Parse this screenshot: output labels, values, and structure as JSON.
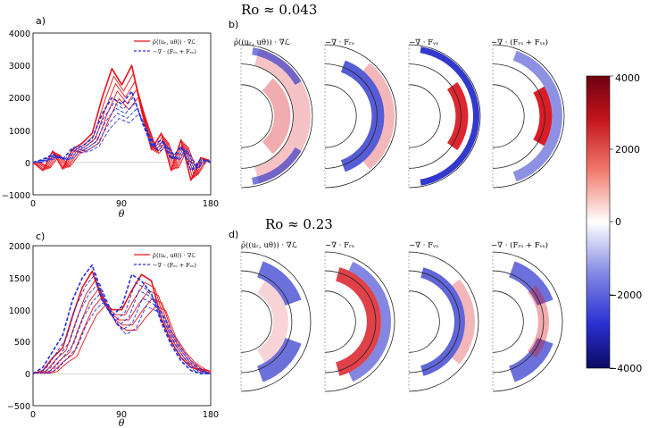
{
  "rossby": {
    "top": "Ro ≈ 0.043",
    "bottom": "Ro ≈ 0.23"
  },
  "panels": {
    "a": "a)",
    "b": "b)",
    "c": "c)",
    "d": "d)"
  },
  "legend": {
    "line1": "ρ̄⟨⟨uᵣ, uθ⟩⟩ · ∇ℒ",
    "line2": "−∇ · (Fᵣₛ + Fᵥₛ)"
  },
  "map_titles": [
    "ρ̄((uᵣ, uθ)) · ∇ℒ",
    "−∇ · Fᵣₛ",
    "−∇ · Fᵥₛ",
    "−∇ · (Fᵣₛ + Fᵥₛ)"
  ],
  "colorbar": {
    "ticks": [
      "4000",
      "2000",
      "0",
      "−2000",
      "−4000"
    ],
    "min": -4000,
    "max": 4000
  },
  "colors": {
    "red": "#e8141c",
    "blue": "#2530d6"
  },
  "chart_data": [
    {
      "type": "line",
      "panel": "a",
      "xlabel": "θ",
      "xlim": [
        0,
        180
      ],
      "ylim": [
        -1000,
        4000
      ],
      "xticks": [
        "0",
        "90",
        "180"
      ],
      "yticks": [
        "4000",
        "3000",
        "2000",
        "1000",
        "0",
        "−1000"
      ],
      "x": [
        0,
        10,
        20,
        30,
        40,
        50,
        60,
        70,
        80,
        90,
        100,
        110,
        120,
        130,
        140,
        150,
        160,
        170,
        180
      ],
      "series": [
        {
          "name": "ρ̄⟨⟨uᵣ, uθ⟩⟩ · ∇ℒ",
          "style": "solid",
          "color": "red",
          "values": [
            0,
            -250,
            350,
            -200,
            400,
            600,
            900,
            2000,
            2900,
            2400,
            3000,
            1600,
            400,
            900,
            -250,
            700,
            -550,
            150,
            0
          ]
        },
        {
          "name": "−∇ · (Fᵣₛ + Fᵥₛ)",
          "style": "dashed",
          "color": "blue",
          "values": [
            0,
            100,
            250,
            100,
            450,
            500,
            750,
            1500,
            2000,
            1800,
            2200,
            1300,
            500,
            700,
            100,
            500,
            -250,
            100,
            0
          ]
        }
      ]
    },
    {
      "type": "line",
      "panel": "c",
      "xlabel": "θ",
      "xlim": [
        0,
        180
      ],
      "ylim": [
        -500,
        2000
      ],
      "xticks": [
        "0",
        "90",
        "180"
      ],
      "yticks": [
        "2000",
        "1500",
        "1000",
        "500",
        "0",
        "−500"
      ],
      "x": [
        0,
        10,
        20,
        30,
        40,
        50,
        60,
        70,
        80,
        90,
        100,
        110,
        120,
        130,
        140,
        150,
        160,
        170,
        180
      ],
      "series": [
        {
          "name": "ρ̄⟨⟨uᵣ, uθ⟩⟩ · ∇ℒ",
          "style": "solid",
          "color": "red",
          "values": [
            0,
            50,
            250,
            400,
            900,
            1350,
            1600,
            1150,
            1000,
            1000,
            1300,
            1550,
            1450,
            850,
            500,
            250,
            100,
            50,
            0
          ]
        },
        {
          "name": "−∇ · (Fᵣₛ + Fᵥₛ)",
          "style": "dashed",
          "color": "blue",
          "values": [
            0,
            100,
            350,
            600,
            1150,
            1500,
            1700,
            1150,
            900,
            1050,
            1550,
            1450,
            1250,
            800,
            450,
            200,
            50,
            0,
            0
          ]
        }
      ]
    }
  ]
}
